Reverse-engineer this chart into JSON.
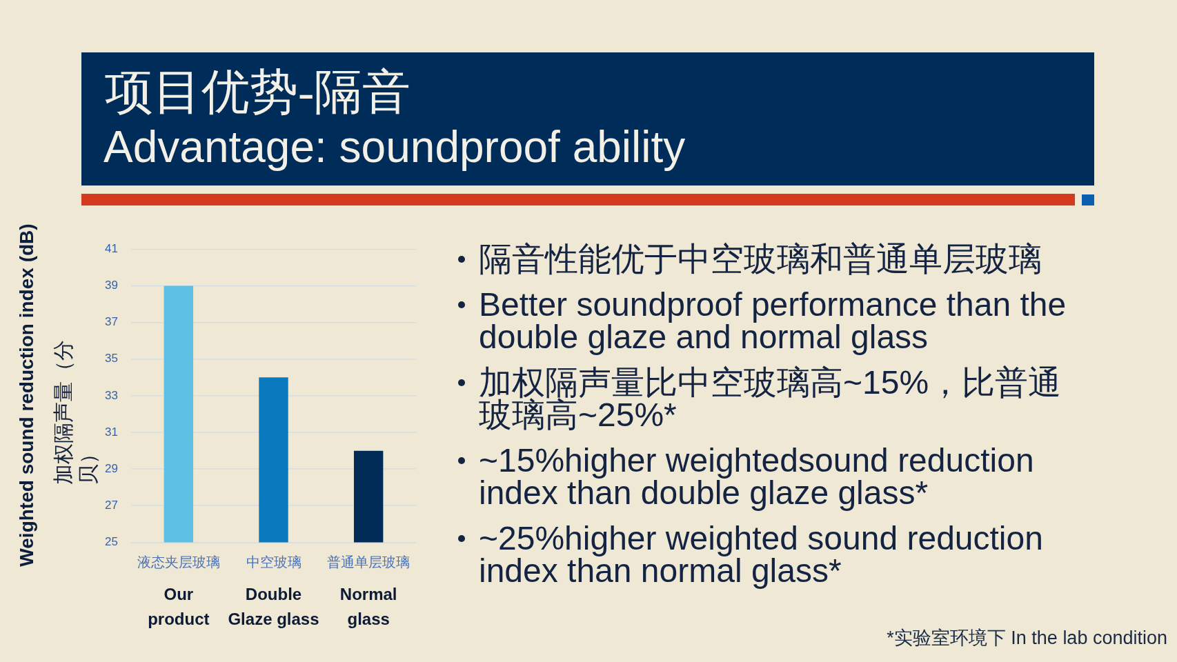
{
  "chart_data": {
    "type": "bar",
    "title": "项目优势-隔音",
    "subtitle": "Advantage: soundproof ability",
    "ylabel": "Weighted sound reduction index (dB)\n加权隔声量（分贝）",
    "categories": [
      "液态夹层玻璃\nOur product",
      "中空玻璃\nDouble Glaze glass",
      "普通单层玻璃\nNormal glass"
    ],
    "values": [
      39,
      34,
      30
    ],
    "colors": [
      "#5ec1e4",
      "#0a7abf",
      "#012c58"
    ],
    "ylim": [
      25,
      41
    ],
    "yticks": [
      25,
      27,
      29,
      31,
      33,
      35,
      37,
      39,
      41
    ],
    "grid": "y",
    "annotations": [
      "隔音性能优于中空玻璃和普通单层玻璃",
      "Better soundproof performance than the double glaze and normal glass",
      "加权隔声量比中空玻璃高~15%，比普通玻璃高~25%*",
      "~15%higher weightedsound reduction index than double glaze glass*",
      "~25%higher weighted sound reduction index than normal glass*",
      "*实验室环境下 In the lab condition"
    ]
  }
}
